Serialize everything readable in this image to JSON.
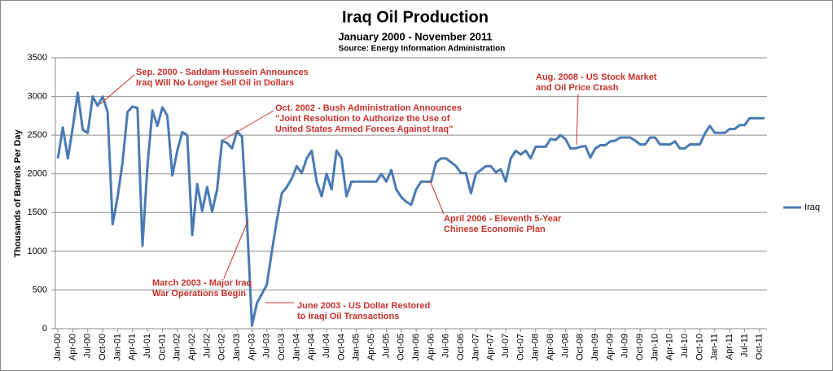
{
  "chart_data": {
    "type": "line",
    "title": "Iraq Oil Production",
    "subtitle": "January 2000 - November 2011",
    "source": "Source: Energy Information Administration",
    "y_label": "Thousands of Barrels Per Day",
    "categories": [
      "Jan-00",
      null,
      null,
      "Apr-00",
      null,
      null,
      "Jul-00",
      null,
      null,
      "Oct-00",
      null,
      null,
      "Jan-01",
      null,
      null,
      "Apr-01",
      null,
      null,
      "Jul-01",
      null,
      null,
      "Oct-01",
      null,
      null,
      "Jan-02",
      null,
      null,
      "Apr-02",
      null,
      null,
      "Jul-02",
      null,
      null,
      "Oct-02",
      null,
      null,
      "Jan-03",
      null,
      null,
      "Apr-03",
      null,
      null,
      "Jul-03",
      null,
      null,
      "Oct-03",
      null,
      null,
      "Jan-04",
      null,
      null,
      "Apr-04",
      null,
      null,
      "Jul-04",
      null,
      null,
      "Oct-04",
      null,
      null,
      "Jan-05",
      null,
      null,
      "Apr-05",
      null,
      null,
      "Jul-05",
      null,
      null,
      "Oct-05",
      null,
      null,
      "Jan-06",
      null,
      null,
      "Apr-06",
      null,
      null,
      "Jul-06",
      null,
      null,
      "Oct-06",
      null,
      null,
      "Jan-07",
      null,
      null,
      "Apr-07",
      null,
      null,
      "Jul-07",
      null,
      null,
      "Oct-07",
      null,
      null,
      "Jan-08",
      null,
      null,
      "Apr-08",
      null,
      null,
      "Jul-08",
      null,
      null,
      "Oct-08",
      null,
      null,
      "Jan-09",
      null,
      null,
      "Apr-09",
      null,
      null,
      "Jul-09",
      null,
      null,
      "Oct-09",
      null,
      null,
      "Jan-10",
      null,
      null,
      "Apr-10",
      null,
      null,
      "Jul-10",
      null,
      null,
      "Oct-10",
      null,
      null,
      "Jan-11",
      null,
      null,
      "Apr-11",
      null,
      null,
      "Jul-11",
      null,
      null,
      "Oct-11",
      null
    ],
    "series": [
      {
        "name": "Iraq",
        "color": "#4a7ab4",
        "values": [
          2200,
          2600,
          2200,
          2600,
          3050,
          2570,
          2530,
          3000,
          2880,
          3000,
          2800,
          1350,
          1700,
          2150,
          2800,
          2870,
          2850,
          1070,
          2100,
          2820,
          2620,
          2860,
          2750,
          1980,
          2300,
          2540,
          2500,
          1210,
          1870,
          1520,
          1830,
          1510,
          1800,
          2430,
          2400,
          2330,
          2550,
          2480,
          1400,
          40,
          330,
          450,
          570,
          1000,
          1400,
          1750,
          1830,
          1940,
          2100,
          2010,
          2200,
          2300,
          1900,
          1710,
          2000,
          1800,
          2300,
          2200,
          1710,
          1900,
          1900,
          1900,
          1900,
          1900,
          1900,
          2000,
          1900,
          2050,
          1800,
          1700,
          1640,
          1600,
          1800,
          1900,
          1900,
          1900,
          2150,
          2200,
          2200,
          2150,
          2100,
          2010,
          2010,
          1750,
          2000,
          2050,
          2100,
          2100,
          2020,
          2060,
          1900,
          2200,
          2300,
          2250,
          2300,
          2200,
          2350,
          2350,
          2350,
          2450,
          2440,
          2500,
          2450,
          2330,
          2330,
          2350,
          2360,
          2210,
          2330,
          2370,
          2370,
          2420,
          2430,
          2470,
          2470,
          2470,
          2430,
          2380,
          2380,
          2470,
          2470,
          2380,
          2380,
          2380,
          2420,
          2330,
          2330,
          2380,
          2380,
          2380,
          2520,
          2620,
          2530,
          2530,
          2530,
          2580,
          2580,
          2630,
          2630,
          2720,
          2720,
          2720,
          2720
        ]
      }
    ],
    "ylim": [
      0,
      3500
    ],
    "yticks": [
      0,
      500,
      1000,
      1500,
      2000,
      2500,
      3000,
      3500
    ],
    "grid": true,
    "legend": "right",
    "annotations": [
      {
        "lines": [
          "Sep. 2000 - Saddam Hussein Announces",
          "Iraq Will No Longer Sell Oil in Dollars"
        ]
      },
      {
        "lines": [
          "Oct. 2002 - Bush Administration Announces",
          "\"Joint Resolution to Authorize the Use of",
          "United States Armed Forces Against Iraq\""
        ]
      },
      {
        "lines": [
          "Aug. 2008 - US Stock Market",
          "and Oil Price Crash"
        ]
      },
      {
        "lines": [
          "April 2006 - Eleventh 5-Year",
          "Chinese Economic Plan"
        ]
      },
      {
        "lines": [
          "March 2003 - Major Iraq",
          "War Operations Begin"
        ]
      },
      {
        "lines": [
          "June 2003 - US Dollar Restored",
          "to Iraqi Oil Transactions"
        ]
      }
    ]
  }
}
